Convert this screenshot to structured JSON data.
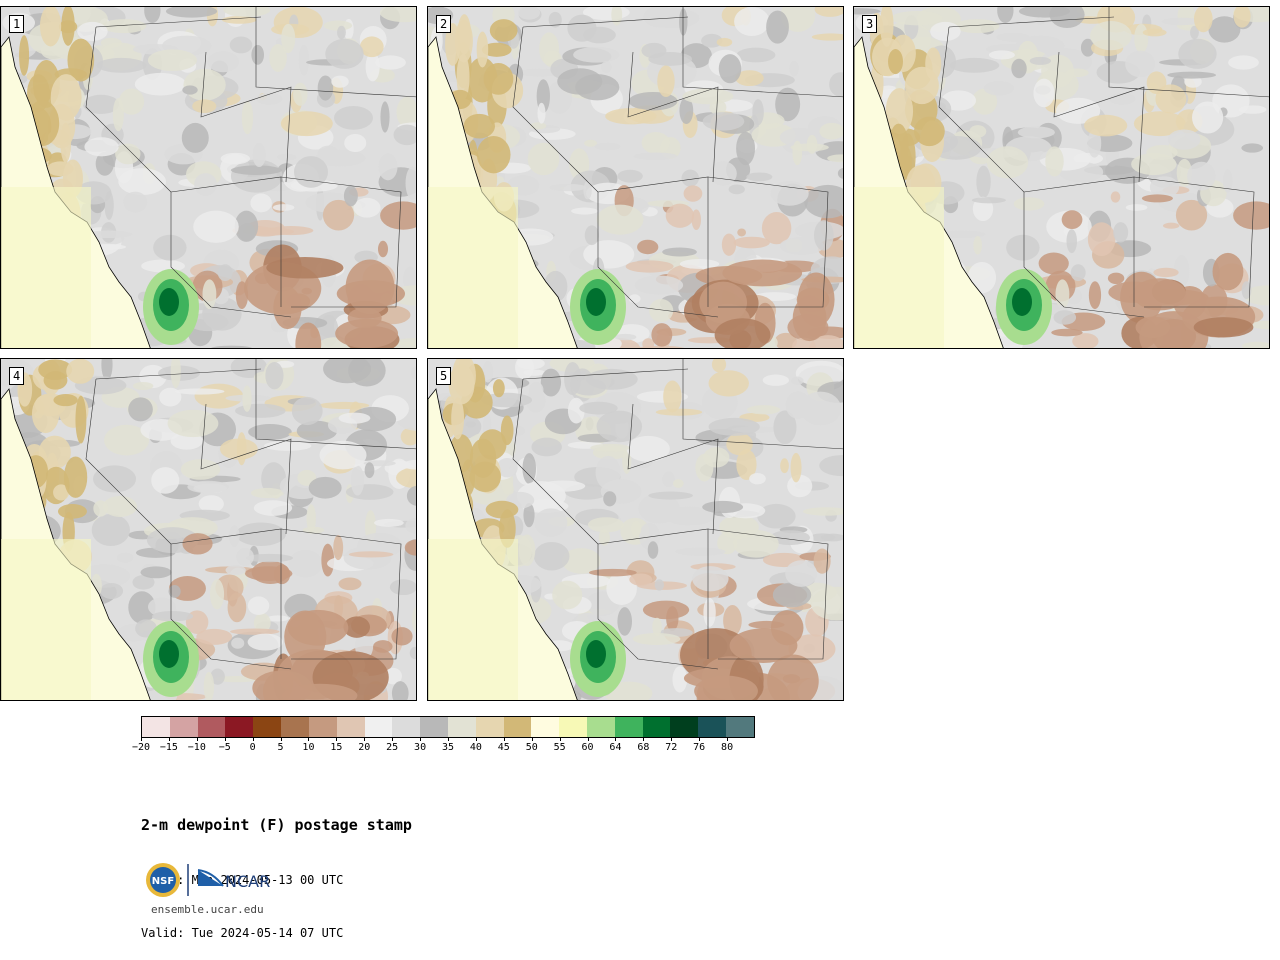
{
  "panels": [
    {
      "label": "1"
    },
    {
      "label": "2"
    },
    {
      "label": "3"
    },
    {
      "label": "4"
    },
    {
      "label": "5"
    }
  ],
  "colorbar": {
    "colors": [
      "#f3e4e4",
      "#d4a3a3",
      "#b05a5f",
      "#8b1823",
      "#8b4513",
      "#a8744f",
      "#c59a80",
      "#e0c6b3",
      "#f0f0f0",
      "#dcdcdc",
      "#b8b8b8",
      "#e2e2d4",
      "#e6d6b0",
      "#d2b877",
      "#fffce0",
      "#f7f9b6",
      "#a8dd8f",
      "#3fb35d",
      "#00702f",
      "#003f1e",
      "#1a5258",
      "#52797d"
    ],
    "tick_labels": [
      "−20",
      "−15",
      "−10",
      "−5",
      "0",
      "5",
      "10",
      "15",
      "20",
      "25",
      "30",
      "35",
      "40",
      "45",
      "50",
      "55",
      "60",
      "64",
      "68",
      "72",
      "76",
      "80"
    ]
  },
  "title": "2-m dewpoint (F) postage stamp",
  "init": " Init: Mon 2024-05-13 00 UTC",
  "valid": "Valid: Tue 2024-05-14 07 UTC",
  "logos": {
    "nsf": "NSF",
    "ncar": "NCAR"
  },
  "website": "ensemble.ucar.edu"
}
